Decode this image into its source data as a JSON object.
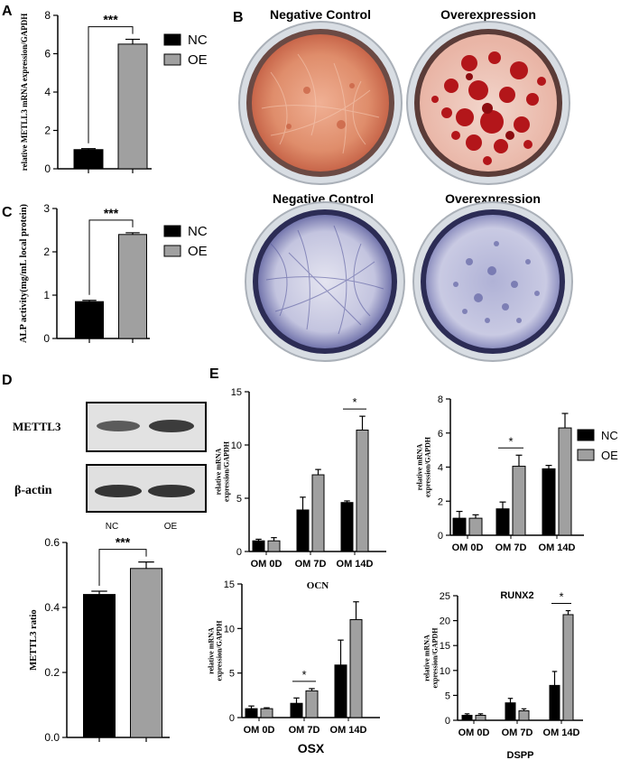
{
  "panel_letters": [
    "A",
    "B",
    "C",
    "D",
    "E"
  ],
  "colors": {
    "nc": "#000000",
    "oe": "#a0a0a0",
    "axis": "#000000",
    "alizarin_dish": "#d9825f",
    "alizarin_nodule": "#b3161a",
    "alp_dish": "#c5c6e0",
    "alp_stain": "#4a4c95",
    "plate_rim": "#b9bdc4"
  },
  "photos": {
    "b_top": [
      "Negative Control",
      "Overexpression"
    ],
    "b_bottom": [
      "Negative Control",
      "Overexpression"
    ]
  },
  "western": {
    "rows": [
      "METTL3",
      "β-actin"
    ],
    "lanes": [
      "NC",
      "OE"
    ]
  },
  "chart_data": [
    {
      "id": "A",
      "type": "bar",
      "categories": [
        "NC",
        "OE"
      ],
      "values": [
        1.0,
        6.5
      ],
      "errors": [
        0.05,
        0.25
      ],
      "ylabel": "relative METLL3 mRNA expression/GAPDH",
      "ylim": [
        0,
        8
      ],
      "yticks": [
        "0",
        "2",
        "4",
        "6",
        "8"
      ],
      "show_xticklabels": false,
      "legend": [
        "NC",
        "OE"
      ],
      "significance": [
        {
          "from": 0,
          "to": 1,
          "label": "***"
        }
      ]
    },
    {
      "id": "C",
      "type": "bar",
      "categories": [
        "NC",
        "OE"
      ],
      "values": [
        0.85,
        2.4
      ],
      "errors": [
        0.03,
        0.04
      ],
      "ylabel": "ALP activity(mg/mL local protein)",
      "ylim": [
        0,
        3
      ],
      "yticks": [
        "0",
        "1",
        "2",
        "3"
      ],
      "show_xticklabels": false,
      "legend": [
        "NC",
        "OE"
      ],
      "significance": [
        {
          "from": 0,
          "to": 1,
          "label": "***"
        }
      ]
    },
    {
      "id": "D",
      "type": "bar",
      "categories": [
        "NC",
        "OE"
      ],
      "values": [
        0.44,
        0.52
      ],
      "errors": [
        0.01,
        0.02
      ],
      "ylabel": "METTL3 ratio",
      "ylim": [
        0.0,
        0.6
      ],
      "yticks": [
        "0.0",
        "0.2",
        "0.4",
        "0.6"
      ],
      "show_xticklabels": false,
      "significance": [
        {
          "from": 0,
          "to": 1,
          "label": "***"
        }
      ]
    },
    {
      "id": "E-OCN",
      "type": "bar",
      "title": "OCN",
      "categories": [
        "OM 0D",
        "OM 7D",
        "OM 14D"
      ],
      "series": [
        {
          "name": "NC",
          "values": [
            1.0,
            3.9,
            4.6
          ],
          "errors": [
            0.15,
            1.2,
            0.15
          ]
        },
        {
          "name": "OE",
          "values": [
            1.0,
            7.2,
            11.4
          ],
          "errors": [
            0.3,
            0.5,
            1.3
          ]
        }
      ],
      "ylabel": "relative mRNA expression/GAPDH",
      "ylim": [
        0,
        15
      ],
      "yticks": [
        "0",
        "5",
        "10",
        "15"
      ],
      "significance": [
        {
          "group": 2,
          "label": "*"
        }
      ]
    },
    {
      "id": "E-RUNX2",
      "type": "bar",
      "title": "RUNX2",
      "categories": [
        "OM 0D",
        "OM 7D",
        "OM 14D"
      ],
      "series": [
        {
          "name": "NC",
          "values": [
            1.0,
            1.55,
            3.9
          ],
          "errors": [
            0.4,
            0.4,
            0.2
          ]
        },
        {
          "name": "OE",
          "values": [
            1.0,
            4.05,
            6.3
          ],
          "errors": [
            0.2,
            0.65,
            0.85
          ]
        }
      ],
      "ylabel": "relative mRNA expression/GAPDH",
      "ylim": [
        0,
        8
      ],
      "yticks": [
        "0",
        "2",
        "4",
        "6",
        "8"
      ],
      "legend": [
        "NC",
        "OE"
      ],
      "significance": [
        {
          "group": 1,
          "label": "*"
        }
      ]
    },
    {
      "id": "E-OSX",
      "type": "bar",
      "title": "OSX",
      "categories": [
        "OM 0D",
        "OM 7D",
        "OM 14D"
      ],
      "series": [
        {
          "name": "NC",
          "values": [
            1.0,
            1.6,
            5.9
          ],
          "errors": [
            0.3,
            0.6,
            2.8
          ]
        },
        {
          "name": "OE",
          "values": [
            1.0,
            3.0,
            11.0
          ],
          "errors": [
            0.1,
            0.25,
            2.0
          ]
        }
      ],
      "ylabel": "relative mRNA expression/GAPDH",
      "ylim": [
        0,
        15
      ],
      "yticks": [
        "0",
        "5",
        "10",
        "15"
      ],
      "significance": [
        {
          "group": 1,
          "label": "*"
        }
      ]
    },
    {
      "id": "E-DSPP",
      "type": "bar",
      "title": "DSPP",
      "categories": [
        "OM 0D",
        "OM 7D",
        "OM 14D"
      ],
      "series": [
        {
          "name": "NC",
          "values": [
            1.0,
            3.5,
            7.0
          ],
          "errors": [
            0.3,
            0.9,
            2.8
          ]
        },
        {
          "name": "OE",
          "values": [
            1.0,
            1.9,
            21.2
          ],
          "errors": [
            0.3,
            0.4,
            0.8
          ]
        }
      ],
      "ylabel": "relative mRNA expression/GAPDH",
      "ylim": [
        0,
        25
      ],
      "yticks": [
        "0",
        "5",
        "10",
        "15",
        "20",
        "25"
      ],
      "significance": [
        {
          "group": 2,
          "label": "*"
        }
      ]
    }
  ]
}
